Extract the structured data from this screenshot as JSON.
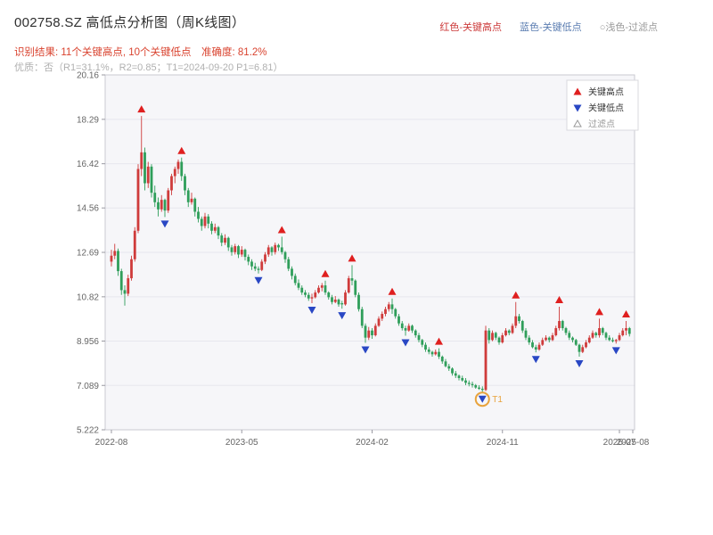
{
  "header": {
    "title": "002758.SZ 高低点分析图（周K线图）",
    "legend": [
      {
        "label": "红色-关键高点",
        "color": "#cc3a3a"
      },
      {
        "label": "蓝色-关键低点",
        "color": "#5b7db1"
      },
      {
        "label": "○浅色-过滤点",
        "color": "#9a9a9a"
      }
    ],
    "result_line": "识别结果: 11个关键高点, 10个关键低点　准确度: 81.2%",
    "result_color": "#d9432f",
    "quality_line": "优质：否（R1=31.1%，R2=0.85；T1=2024-09-20 P1=6.81）",
    "quality_color": "#b0b0b0"
  },
  "chart_data": {
    "type": "candlestick",
    "symbol": "002758.SZ",
    "period": "weekly",
    "title": "002758.SZ 高低点分析图（周K线图）",
    "ylim": [
      5.222,
      20.16
    ],
    "y_ticks": [
      "20.16",
      "18.29",
      "16.42",
      "14.56",
      "12.69",
      "10.82",
      "8.956",
      "7.089",
      "5.222"
    ],
    "y_tick_values": [
      20.16,
      18.29,
      16.42,
      14.56,
      12.69,
      10.82,
      8.956,
      7.089,
      5.222
    ],
    "x_ticks": [
      {
        "week": 0,
        "label": "2022-08"
      },
      {
        "week": 39,
        "label": "2023-05"
      },
      {
        "week": 78,
        "label": "2024-02"
      },
      {
        "week": 117,
        "label": "2024-11"
      },
      {
        "week": 152,
        "label": "2025-07"
      },
      {
        "week": 156,
        "label": "2025-08"
      }
    ],
    "grid": true,
    "legend_position": "top-right-inside",
    "legend_box": [
      {
        "marker": "up",
        "label": "关键高点"
      },
      {
        "marker": "down",
        "label": "关键低点"
      },
      {
        "marker": "hollow",
        "label": "过滤点"
      }
    ],
    "key_high_weeks": [
      9,
      21,
      51,
      64,
      72,
      84,
      98,
      121,
      134,
      146,
      154
    ],
    "key_low_weeks": [
      16,
      44,
      60,
      69,
      76,
      88,
      111,
      127,
      140,
      151
    ],
    "t1": {
      "week": 111,
      "label": "T1",
      "price": 6.81,
      "date": "2024-09-20"
    },
    "candles": [
      [
        12.3,
        12.8,
        12.1,
        12.55
      ],
      [
        12.55,
        13.05,
        12.4,
        12.75
      ],
      [
        12.75,
        12.85,
        11.7,
        11.9
      ],
      [
        11.9,
        12.0,
        10.9,
        11.1
      ],
      [
        11.1,
        11.3,
        10.45,
        10.95
      ],
      [
        10.95,
        11.75,
        10.85,
        11.6
      ],
      [
        11.6,
        12.55,
        11.5,
        12.4
      ],
      [
        12.4,
        13.75,
        12.3,
        13.6
      ],
      [
        13.6,
        16.4,
        13.5,
        16.2
      ],
      [
        16.2,
        18.43,
        15.9,
        16.9
      ],
      [
        16.9,
        17.1,
        15.3,
        15.6
      ],
      [
        15.6,
        16.5,
        15.4,
        16.3
      ],
      [
        16.3,
        16.4,
        15.0,
        15.2
      ],
      [
        15.2,
        15.5,
        14.6,
        14.8
      ],
      [
        14.8,
        15.0,
        14.2,
        14.5
      ],
      [
        14.5,
        15.1,
        14.4,
        14.9
      ],
      [
        14.9,
        14.95,
        14.18,
        14.45
      ],
      [
        14.45,
        15.4,
        14.35,
        15.3
      ],
      [
        15.3,
        16.0,
        15.1,
        15.9
      ],
      [
        15.9,
        16.3,
        15.6,
        16.2
      ],
      [
        16.2,
        16.6,
        16.0,
        16.5
      ],
      [
        16.5,
        16.68,
        15.7,
        15.9
      ],
      [
        15.9,
        16.0,
        15.1,
        15.3
      ],
      [
        15.3,
        15.4,
        14.6,
        14.8
      ],
      [
        14.8,
        15.2,
        14.7,
        14.95
      ],
      [
        14.95,
        15.0,
        14.2,
        14.4
      ],
      [
        14.4,
        14.6,
        13.95,
        14.1
      ],
      [
        14.1,
        14.2,
        13.6,
        13.8
      ],
      [
        13.8,
        14.35,
        13.7,
        14.2
      ],
      [
        14.2,
        14.3,
        13.7,
        13.9
      ],
      [
        13.9,
        14.0,
        13.45,
        13.6
      ],
      [
        13.6,
        13.9,
        13.5,
        13.75
      ],
      [
        13.75,
        13.8,
        13.25,
        13.4
      ],
      [
        13.4,
        13.5,
        12.95,
        13.1
      ],
      [
        13.1,
        13.45,
        13.0,
        13.3
      ],
      [
        13.3,
        13.35,
        12.75,
        12.9
      ],
      [
        12.9,
        13.0,
        12.55,
        12.7
      ],
      [
        12.7,
        13.05,
        12.6,
        12.95
      ],
      [
        12.95,
        13.0,
        12.45,
        12.6
      ],
      [
        12.6,
        12.95,
        12.5,
        12.8
      ],
      [
        12.8,
        12.85,
        12.35,
        12.5
      ],
      [
        12.5,
        12.6,
        12.15,
        12.3
      ],
      [
        12.3,
        12.4,
        11.95,
        12.1
      ],
      [
        12.1,
        12.25,
        11.9,
        12.0
      ],
      [
        12.0,
        12.1,
        11.8,
        11.95
      ],
      [
        11.95,
        12.4,
        11.9,
        12.3
      ],
      [
        12.3,
        12.7,
        12.2,
        12.6
      ],
      [
        12.6,
        13.0,
        12.5,
        12.9
      ],
      [
        12.9,
        12.95,
        12.55,
        12.7
      ],
      [
        12.7,
        13.1,
        12.6,
        13.0
      ],
      [
        13.0,
        13.05,
        12.75,
        12.9
      ],
      [
        12.9,
        13.35,
        12.6,
        12.7
      ],
      [
        12.7,
        12.75,
        12.25,
        12.4
      ],
      [
        12.4,
        12.5,
        11.9,
        12.0
      ],
      [
        12.0,
        12.1,
        11.55,
        11.7
      ],
      [
        11.7,
        11.8,
        11.3,
        11.4
      ],
      [
        11.4,
        11.55,
        11.1,
        11.2
      ],
      [
        11.2,
        11.3,
        10.9,
        11.0
      ],
      [
        11.0,
        11.1,
        10.8,
        10.9
      ],
      [
        10.9,
        11.0,
        10.65,
        10.75
      ],
      [
        10.75,
        10.95,
        10.55,
        10.8
      ],
      [
        10.8,
        11.1,
        10.75,
        11.0
      ],
      [
        11.0,
        11.3,
        10.95,
        11.2
      ],
      [
        11.2,
        11.4,
        11.05,
        11.3
      ],
      [
        11.3,
        11.5,
        10.9,
        11.0
      ],
      [
        11.0,
        11.05,
        10.7,
        10.8
      ],
      [
        10.8,
        10.9,
        10.5,
        10.6
      ],
      [
        10.6,
        10.85,
        10.55,
        10.7
      ],
      [
        10.7,
        10.75,
        10.4,
        10.5
      ],
      [
        10.55,
        10.65,
        10.32,
        10.5
      ],
      [
        10.5,
        11.1,
        10.45,
        11.0
      ],
      [
        11.0,
        11.7,
        10.95,
        11.6
      ],
      [
        11.6,
        12.15,
        11.3,
        11.5
      ],
      [
        11.5,
        11.55,
        10.8,
        10.9
      ],
      [
        10.9,
        11.0,
        10.2,
        10.3
      ],
      [
        10.3,
        10.4,
        9.5,
        9.6
      ],
      [
        9.6,
        9.7,
        8.88,
        9.1
      ],
      [
        9.1,
        9.55,
        9.0,
        9.4
      ],
      [
        9.4,
        9.5,
        9.05,
        9.2
      ],
      [
        9.2,
        9.7,
        9.15,
        9.6
      ],
      [
        9.6,
        10.0,
        9.55,
        9.9
      ],
      [
        9.9,
        10.2,
        9.8,
        10.1
      ],
      [
        10.1,
        10.4,
        10.0,
        10.3
      ],
      [
        10.3,
        10.6,
        10.2,
        10.5
      ],
      [
        10.5,
        10.75,
        10.1,
        10.3
      ],
      [
        10.3,
        10.35,
        9.9,
        10.0
      ],
      [
        10.0,
        10.1,
        9.6,
        9.7
      ],
      [
        9.7,
        9.8,
        9.4,
        9.5
      ],
      [
        9.5,
        9.6,
        9.18,
        9.4
      ],
      [
        9.4,
        9.7,
        9.35,
        9.6
      ],
      [
        9.6,
        9.65,
        9.3,
        9.4
      ],
      [
        9.4,
        9.45,
        9.1,
        9.2
      ],
      [
        9.2,
        9.3,
        8.9,
        9.0
      ],
      [
        9.0,
        9.05,
        8.7,
        8.8
      ],
      [
        8.8,
        8.9,
        8.5,
        8.6
      ],
      [
        8.6,
        8.7,
        8.4,
        8.5
      ],
      [
        8.5,
        8.55,
        8.3,
        8.4
      ],
      [
        8.4,
        8.6,
        8.35,
        8.5
      ],
      [
        8.5,
        8.65,
        8.2,
        8.3
      ],
      [
        8.3,
        8.35,
        8.0,
        8.1
      ],
      [
        8.1,
        8.2,
        7.85,
        7.9
      ],
      [
        7.9,
        8.0,
        7.7,
        7.8
      ],
      [
        7.8,
        7.85,
        7.5,
        7.6
      ],
      [
        7.6,
        7.7,
        7.4,
        7.5
      ],
      [
        7.5,
        7.55,
        7.3,
        7.4
      ],
      [
        7.4,
        7.5,
        7.25,
        7.3
      ],
      [
        7.3,
        7.4,
        7.1,
        7.2
      ],
      [
        7.2,
        7.3,
        7.05,
        7.15
      ],
      [
        7.15,
        7.25,
        7.0,
        7.1
      ],
      [
        7.1,
        7.15,
        6.95,
        7.0
      ],
      [
        7.0,
        7.1,
        6.9,
        6.95
      ],
      [
        6.95,
        7.05,
        6.81,
        6.9
      ],
      [
        6.9,
        9.6,
        6.85,
        9.4
      ],
      [
        9.4,
        9.5,
        8.85,
        9.0
      ],
      [
        9.0,
        9.4,
        8.95,
        9.3
      ],
      [
        9.3,
        9.35,
        9.0,
        9.1
      ],
      [
        9.1,
        9.15,
        8.8,
        8.9
      ],
      [
        8.9,
        9.3,
        8.85,
        9.2
      ],
      [
        9.2,
        9.5,
        9.15,
        9.4
      ],
      [
        9.4,
        9.45,
        9.2,
        9.3
      ],
      [
        9.3,
        9.7,
        9.25,
        9.6
      ],
      [
        9.6,
        10.6,
        9.5,
        10.0
      ],
      [
        10.0,
        10.1,
        9.7,
        9.8
      ],
      [
        9.8,
        9.85,
        9.3,
        9.4
      ],
      [
        9.4,
        9.5,
        9.0,
        9.1
      ],
      [
        9.1,
        9.2,
        8.8,
        8.9
      ],
      [
        8.9,
        9.0,
        8.65,
        8.7
      ],
      [
        8.7,
        8.8,
        8.48,
        8.6
      ],
      [
        8.6,
        8.9,
        8.55,
        8.8
      ],
      [
        8.8,
        9.1,
        8.75,
        9.0
      ],
      [
        9.0,
        9.2,
        8.95,
        9.1
      ],
      [
        9.1,
        9.15,
        8.9,
        9.0
      ],
      [
        9.0,
        9.3,
        8.95,
        9.2
      ],
      [
        9.2,
        9.6,
        9.15,
        9.5
      ],
      [
        9.5,
        10.4,
        9.4,
        9.8
      ],
      [
        9.8,
        9.85,
        9.4,
        9.5
      ],
      [
        9.5,
        9.55,
        9.2,
        9.3
      ],
      [
        9.3,
        9.4,
        9.0,
        9.1
      ],
      [
        9.1,
        9.15,
        8.9,
        9.0
      ],
      [
        9.0,
        9.05,
        8.75,
        8.8
      ],
      [
        8.8,
        8.85,
        8.3,
        8.5
      ],
      [
        8.5,
        8.8,
        8.45,
        8.7
      ],
      [
        8.7,
        9.0,
        8.65,
        8.9
      ],
      [
        8.9,
        9.2,
        8.85,
        9.1
      ],
      [
        9.1,
        9.4,
        9.05,
        9.3
      ],
      [
        9.3,
        9.35,
        9.1,
        9.2
      ],
      [
        9.2,
        9.9,
        9.1,
        9.5
      ],
      [
        9.5,
        9.55,
        9.2,
        9.3
      ],
      [
        9.3,
        9.35,
        9.0,
        9.1
      ],
      [
        9.1,
        9.2,
        8.95,
        9.0
      ],
      [
        9.0,
        9.1,
        8.9,
        8.95
      ],
      [
        8.95,
        9.05,
        8.85,
        9.0
      ],
      [
        9.0,
        9.3,
        8.95,
        9.2
      ],
      [
        9.2,
        9.5,
        9.15,
        9.4
      ],
      [
        9.4,
        9.8,
        9.2,
        9.5
      ],
      [
        9.5,
        9.55,
        9.15,
        9.26
      ]
    ],
    "colors": {
      "up": "#cf3b3b",
      "down": "#2f9e5a",
      "key_high": "#df1f1f",
      "key_low": "#2947c4",
      "t1": "#e8a33d",
      "grid": "#e7e7ee",
      "plot_bg": "#f6f6f9",
      "border": "#c9c9d1",
      "axis_text": "#666666",
      "legend_text": "#333333",
      "filter_text": "#9a9a9a"
    }
  }
}
